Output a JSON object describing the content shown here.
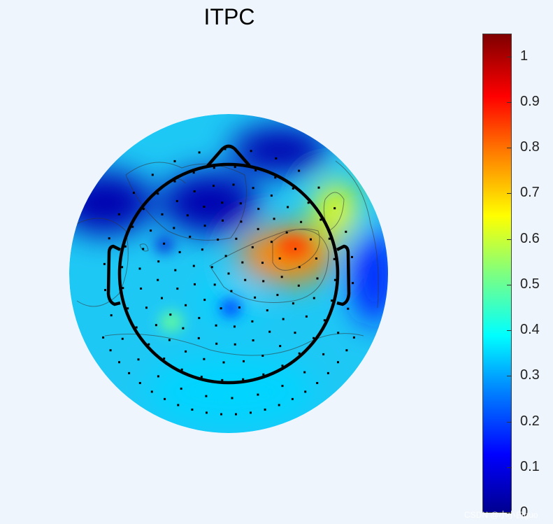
{
  "chart_data": {
    "type": "heatmap",
    "title": "ITPC",
    "colorbar": {
      "colormap": "jet",
      "min": 0,
      "max": 1.05,
      "ticks": [
        0,
        0.1,
        0.2,
        0.3,
        0.4,
        0.5,
        0.6,
        0.7,
        0.8,
        0.9,
        1
      ],
      "tick_labels": [
        "0",
        "0.1",
        "0.2",
        "0.3",
        "0.4",
        "0.5",
        "0.6",
        "0.7",
        "0.8",
        "0.9",
        "1"
      ]
    },
    "regions": [
      {
        "area": "left-frontal",
        "value": 0.05
      },
      {
        "area": "frontal-midline",
        "value": 0.05
      },
      {
        "area": "right-frontal-temporal",
        "value": 0.65
      },
      {
        "area": "right-central",
        "value": 0.78
      },
      {
        "area": "right-temporal",
        "value": 0.15
      },
      {
        "area": "central",
        "value": 0.35
      },
      {
        "area": "occipital",
        "value": 0.35
      }
    ]
  },
  "watermark": "CSDN @小小白guo"
}
